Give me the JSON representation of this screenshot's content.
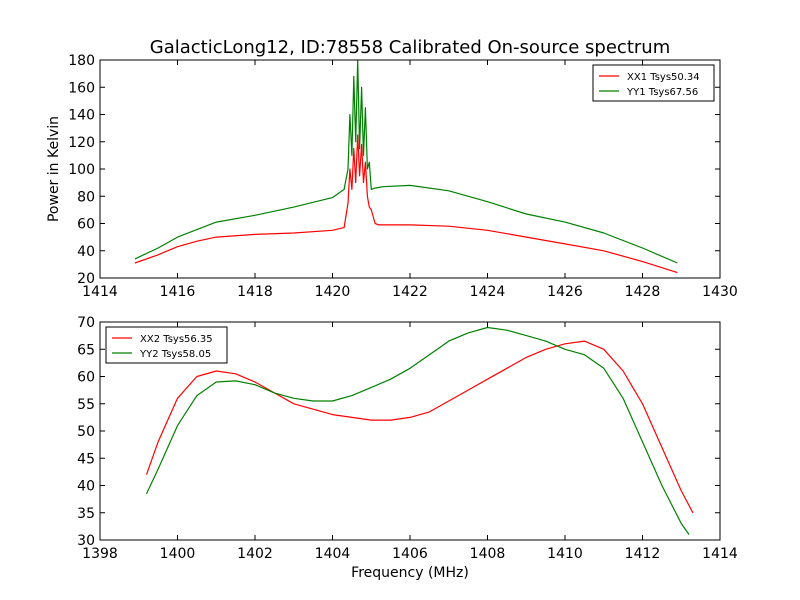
{
  "chart_data": [
    {
      "type": "line",
      "title": "GalacticLong12, ID:78558 Calibrated On-source spectrum",
      "xlabel": "",
      "ylabel": "Power in Kelvin",
      "xlim": [
        1414,
        1430
      ],
      "ylim": [
        20,
        180
      ],
      "xticks": [
        1414,
        1416,
        1418,
        1420,
        1422,
        1424,
        1426,
        1428,
        1430
      ],
      "yticks": [
        20,
        40,
        60,
        80,
        100,
        120,
        140,
        160,
        180
      ],
      "grid": false,
      "legend_position": "top-right",
      "colors": {
        "XX1 Tsys50.34": "#ff0000",
        "YY1 Tsys67.56": "#008000"
      },
      "series": [
        {
          "name": "XX1 Tsys50.34",
          "color": "#ff0000",
          "x": [
            1414.9,
            1415.5,
            1416.0,
            1416.5,
            1417.0,
            1418.0,
            1419.0,
            1420.0,
            1420.3,
            1420.4,
            1420.45,
            1420.5,
            1420.55,
            1420.6,
            1420.65,
            1420.7,
            1420.75,
            1420.8,
            1420.85,
            1420.9,
            1420.95,
            1421.0,
            1421.1,
            1421.2,
            1422.0,
            1423.0,
            1424.0,
            1425.0,
            1426.0,
            1427.0,
            1428.0,
            1428.9
          ],
          "y": [
            31,
            37,
            43,
            47,
            50,
            52,
            53,
            55,
            57,
            75,
            100,
            85,
            115,
            90,
            125,
            95,
            118,
            90,
            105,
            80,
            72,
            70,
            60,
            59,
            59,
            58,
            55,
            50,
            45,
            40,
            32,
            24
          ]
        },
        {
          "name": "YY1 Tsys67.56",
          "color": "#008000",
          "x": [
            1414.9,
            1415.5,
            1416.0,
            1417.0,
            1418.0,
            1419.0,
            1420.0,
            1420.3,
            1420.4,
            1420.45,
            1420.5,
            1420.55,
            1420.6,
            1420.65,
            1420.7,
            1420.75,
            1420.8,
            1420.85,
            1420.9,
            1420.95,
            1421.0,
            1421.1,
            1421.3,
            1422.0,
            1423.0,
            1424.0,
            1425.0,
            1426.0,
            1427.0,
            1428.0,
            1428.9
          ],
          "y": [
            34,
            42,
            50,
            61,
            66,
            72,
            79,
            85,
            100,
            140,
            110,
            168,
            120,
            180,
            115,
            160,
            110,
            145,
            100,
            105,
            85,
            86,
            87,
            88,
            84,
            76,
            67,
            61,
            53,
            42,
            31
          ]
        }
      ]
    },
    {
      "type": "line",
      "title": "",
      "xlabel": "Frequency (MHz)",
      "ylabel": "",
      "xlim": [
        1398,
        1414
      ],
      "ylim": [
        30,
        70
      ],
      "xticks": [
        1398,
        1400,
        1402,
        1404,
        1406,
        1408,
        1410,
        1412,
        1414
      ],
      "yticks": [
        30,
        35,
        40,
        45,
        50,
        55,
        60,
        65,
        70
      ],
      "grid": false,
      "legend_position": "top-left",
      "colors": {
        "XX2 Tsys56.35": "#ff0000",
        "YY2 Tsys58.05": "#008000"
      },
      "series": [
        {
          "name": "XX2 Tsys56.35",
          "color": "#ff0000",
          "x": [
            1399.2,
            1399.5,
            1400.0,
            1400.5,
            1401.0,
            1401.5,
            1402.0,
            1402.5,
            1403.0,
            1403.5,
            1404.0,
            1404.5,
            1405.0,
            1405.5,
            1406.0,
            1406.5,
            1407.0,
            1407.5,
            1408.0,
            1408.5,
            1409.0,
            1409.5,
            1410.0,
            1410.5,
            1411.0,
            1411.5,
            1412.0,
            1412.5,
            1413.0,
            1413.3
          ],
          "y": [
            42,
            48,
            56,
            60,
            61,
            60.5,
            59,
            57,
            55,
            54,
            53,
            52.5,
            52,
            52,
            52.5,
            53.5,
            55.5,
            57.5,
            59.5,
            61.5,
            63.5,
            65,
            66,
            66.5,
            65,
            61,
            55,
            47,
            39,
            35
          ]
        },
        {
          "name": "YY2 Tsys58.05",
          "color": "#008000",
          "x": [
            1399.2,
            1399.5,
            1400.0,
            1400.5,
            1401.0,
            1401.5,
            1402.0,
            1402.5,
            1403.0,
            1403.5,
            1404.0,
            1404.5,
            1405.0,
            1405.5,
            1406.0,
            1406.5,
            1407.0,
            1407.5,
            1408.0,
            1408.5,
            1409.0,
            1409.5,
            1410.0,
            1410.5,
            1411.0,
            1411.5,
            1412.0,
            1412.5,
            1413.0,
            1413.2
          ],
          "y": [
            38.5,
            43,
            51,
            56.5,
            59,
            59.2,
            58.5,
            57,
            56,
            55.5,
            55.5,
            56.5,
            58,
            59.5,
            61.5,
            64,
            66.5,
            68,
            69,
            68.5,
            67.5,
            66.5,
            65,
            64,
            61.5,
            56,
            48,
            40,
            33,
            31
          ]
        }
      ]
    }
  ]
}
